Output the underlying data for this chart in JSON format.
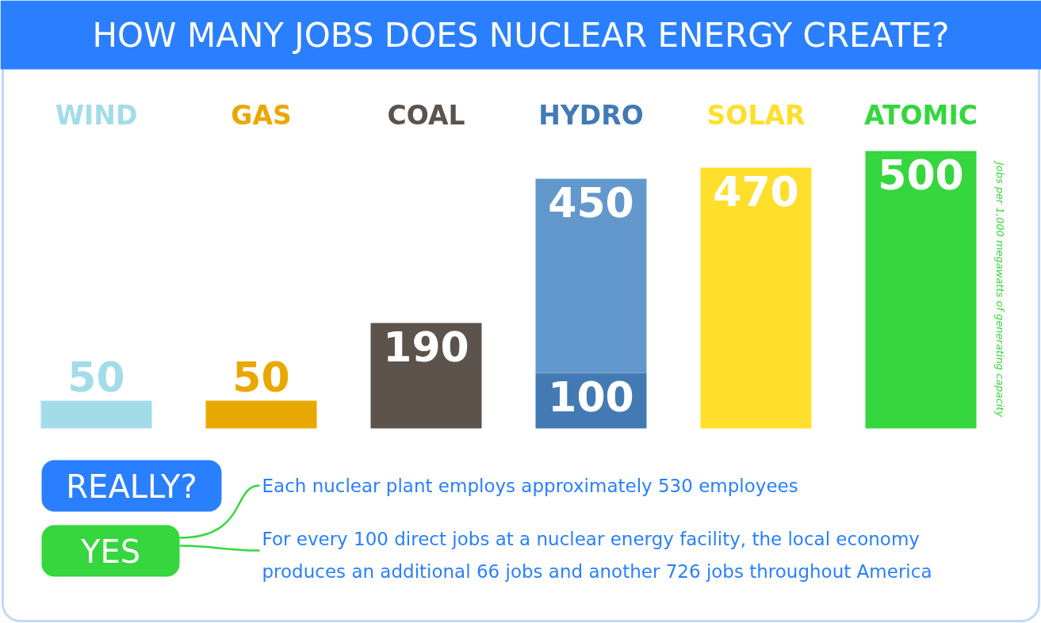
{
  "chart_data": {
    "type": "bar",
    "title": "HOW MANY JOBS DOES NUCLEAR ENERGY CREATE?",
    "ylabel": "Jobs per 1,000 megawatts of generating capacity",
    "categories": [
      "WIND",
      "GAS",
      "COAL",
      "HYDRO",
      "SOLAR",
      "ATOMIC"
    ],
    "stacked": true,
    "series": [
      {
        "colors": [
          "#a3dce9",
          "#e9a800",
          "#5c534c",
          "#437ab4",
          "#ffdf2c",
          "#35d63e"
        ],
        "values": [
          50,
          50,
          190,
          100,
          470,
          500
        ],
        "value_labels": [
          "50",
          "50",
          "190",
          "100",
          "470",
          "500"
        ]
      },
      {
        "color": "#6398cc",
        "values": [
          null,
          null,
          null,
          350,
          null,
          null
        ]
      }
    ],
    "totals": [
      null,
      null,
      null,
      "450",
      null,
      null
    ],
    "annotations": [
      "REALLY?",
      "YES",
      "Each nuclear plant employs approximately 530 employees",
      "For every 100 direct jobs at a nuclear energy facility, the local economy produces an additional 66 jobs and another 726 jobs throughout America"
    ]
  }
}
